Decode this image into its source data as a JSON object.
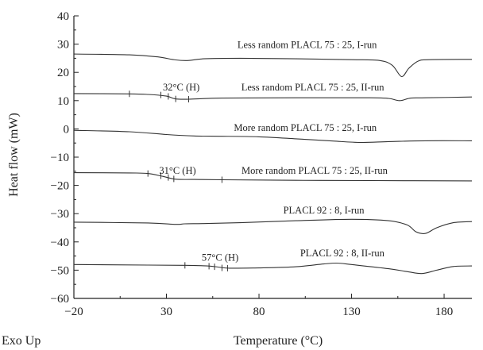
{
  "chart_data": {
    "type": "line",
    "xlabel": "Temperature (°C)",
    "ylabel": "Heat flow (mW)",
    "corner_label": "Exo Up",
    "xlim": [
      -20,
      195
    ],
    "ylim": [
      -60,
      40
    ],
    "x_ticks": [
      -20,
      30,
      80,
      130,
      180
    ],
    "x_tick_labels": [
      "−20",
      "30",
      "80",
      "130",
      "180"
    ],
    "y_ticks": [
      40,
      30,
      20,
      10,
      0,
      -10,
      -20,
      -30,
      -40,
      -50,
      -60
    ],
    "y_tick_labels": [
      "40",
      "30",
      "20",
      "10",
      "0",
      "−10",
      "−20",
      "−30",
      "−40",
      "−50",
      "−60"
    ],
    "series": [
      {
        "name": "Less random PLACL 75 : 25, I-run",
        "x": [
          -20,
          10,
          25,
          35,
          42,
          50,
          70,
          100,
          130,
          145,
          152,
          157,
          161,
          166,
          172,
          195
        ],
        "y": [
          26.5,
          26.2,
          25.5,
          24.4,
          24.2,
          24.8,
          25.0,
          24.8,
          24.5,
          24.2,
          22.5,
          18.5,
          21.5,
          24.0,
          24.5,
          24.6
        ]
      },
      {
        "name": "Less random PLACL 75 : 25, II-run",
        "x": [
          -20,
          10,
          20,
          30,
          35,
          42,
          60,
          100,
          140,
          150,
          156,
          162,
          170,
          195
        ],
        "y": [
          12.5,
          12.4,
          12.2,
          11.6,
          10.6,
          10.5,
          10.9,
          11.0,
          11.0,
          10.8,
          10.0,
          10.9,
          11.0,
          11.3
        ]
      },
      {
        "name": "More random PLACL 75 : 25, I-run",
        "x": [
          -20,
          10,
          30,
          45,
          60,
          80,
          100,
          120,
          135,
          150,
          170,
          195
        ],
        "y": [
          -0.5,
          -1.0,
          -2.0,
          -2.5,
          -2.6,
          -2.8,
          -3.5,
          -4.3,
          -4.8,
          -4.5,
          -4.2,
          -4.2
        ]
      },
      {
        "name": "More random PLACL 75 : 25, II-run",
        "x": [
          -20,
          10,
          20,
          28,
          35,
          45,
          60,
          100,
          140,
          195
        ],
        "y": [
          -15.5,
          -15.6,
          -15.8,
          -16.8,
          -17.8,
          -17.9,
          -18.0,
          -18.2,
          -18.3,
          -18.4
        ]
      },
      {
        "name": "PLACL 92 : 8, I-run",
        "x": [
          -20,
          20,
          35,
          40,
          50,
          70,
          100,
          130,
          150,
          160,
          165,
          170,
          176,
          185,
          195
        ],
        "y": [
          -33.0,
          -33.3,
          -33.8,
          -33.6,
          -33.5,
          -33.2,
          -32.5,
          -32.0,
          -32.5,
          -34.0,
          -36.5,
          -37.0,
          -35.0,
          -33.2,
          -32.8
        ]
      },
      {
        "name": "PLACL 92 : 8, II-run",
        "x": [
          -20,
          20,
          40,
          52,
          58,
          64,
          80,
          100,
          115,
          122,
          130,
          150,
          160,
          168,
          176,
          185,
          195
        ],
        "y": [
          -48.0,
          -48.2,
          -48.3,
          -48.5,
          -48.9,
          -49.3,
          -49.2,
          -48.8,
          -47.8,
          -47.5,
          -48.0,
          -49.5,
          -50.5,
          -51.2,
          -50.0,
          -48.7,
          -48.5
        ]
      }
    ],
    "labels": [
      {
        "text": "Less random PLACL 75 : 25, I-run",
        "x": 106,
        "y": 29.8
      },
      {
        "text": "Less random PLACL 75 : 25, II-run",
        "x": 109,
        "y": 14.7
      },
      {
        "text": "More random PLACL 75 : 25, I-run",
        "x": 105,
        "y": 0.4
      },
      {
        "text": "More random PLACL 75 : 25, II-run",
        "x": 110,
        "y": -14.8
      },
      {
        "text": "PLACL 92 : 8, I-run",
        "x": 115,
        "y": -28.8
      },
      {
        "text": "PLACL 92 : 8, II-run",
        "x": 125,
        "y": -44.0
      }
    ],
    "annotations": [
      {
        "text": "32°C (H)",
        "x": 38,
        "y": 14.7
      },
      {
        "text": "31°C (H)",
        "x": 36,
        "y": -14.8
      },
      {
        "text": "57°C (H)",
        "x": 59,
        "y": -45.6
      }
    ],
    "markers": [
      {
        "x": 10,
        "y": 12.4
      },
      {
        "x": 27,
        "y": 12.0
      },
      {
        "x": 31,
        "y": 11.5
      },
      {
        "x": 35,
        "y": 10.6
      },
      {
        "x": 42,
        "y": 10.5
      },
      {
        "x": 20,
        "y": -15.8
      },
      {
        "x": 27,
        "y": -16.6
      },
      {
        "x": 31,
        "y": -17.2
      },
      {
        "x": 34,
        "y": -17.7
      },
      {
        "x": 60,
        "y": -18.0
      },
      {
        "x": 40,
        "y": -48.3
      },
      {
        "x": 53,
        "y": -48.6
      },
      {
        "x": 56,
        "y": -48.8
      },
      {
        "x": 60,
        "y": -49.2
      },
      {
        "x": 63,
        "y": -49.3
      }
    ],
    "grid": false,
    "legend": "none"
  }
}
